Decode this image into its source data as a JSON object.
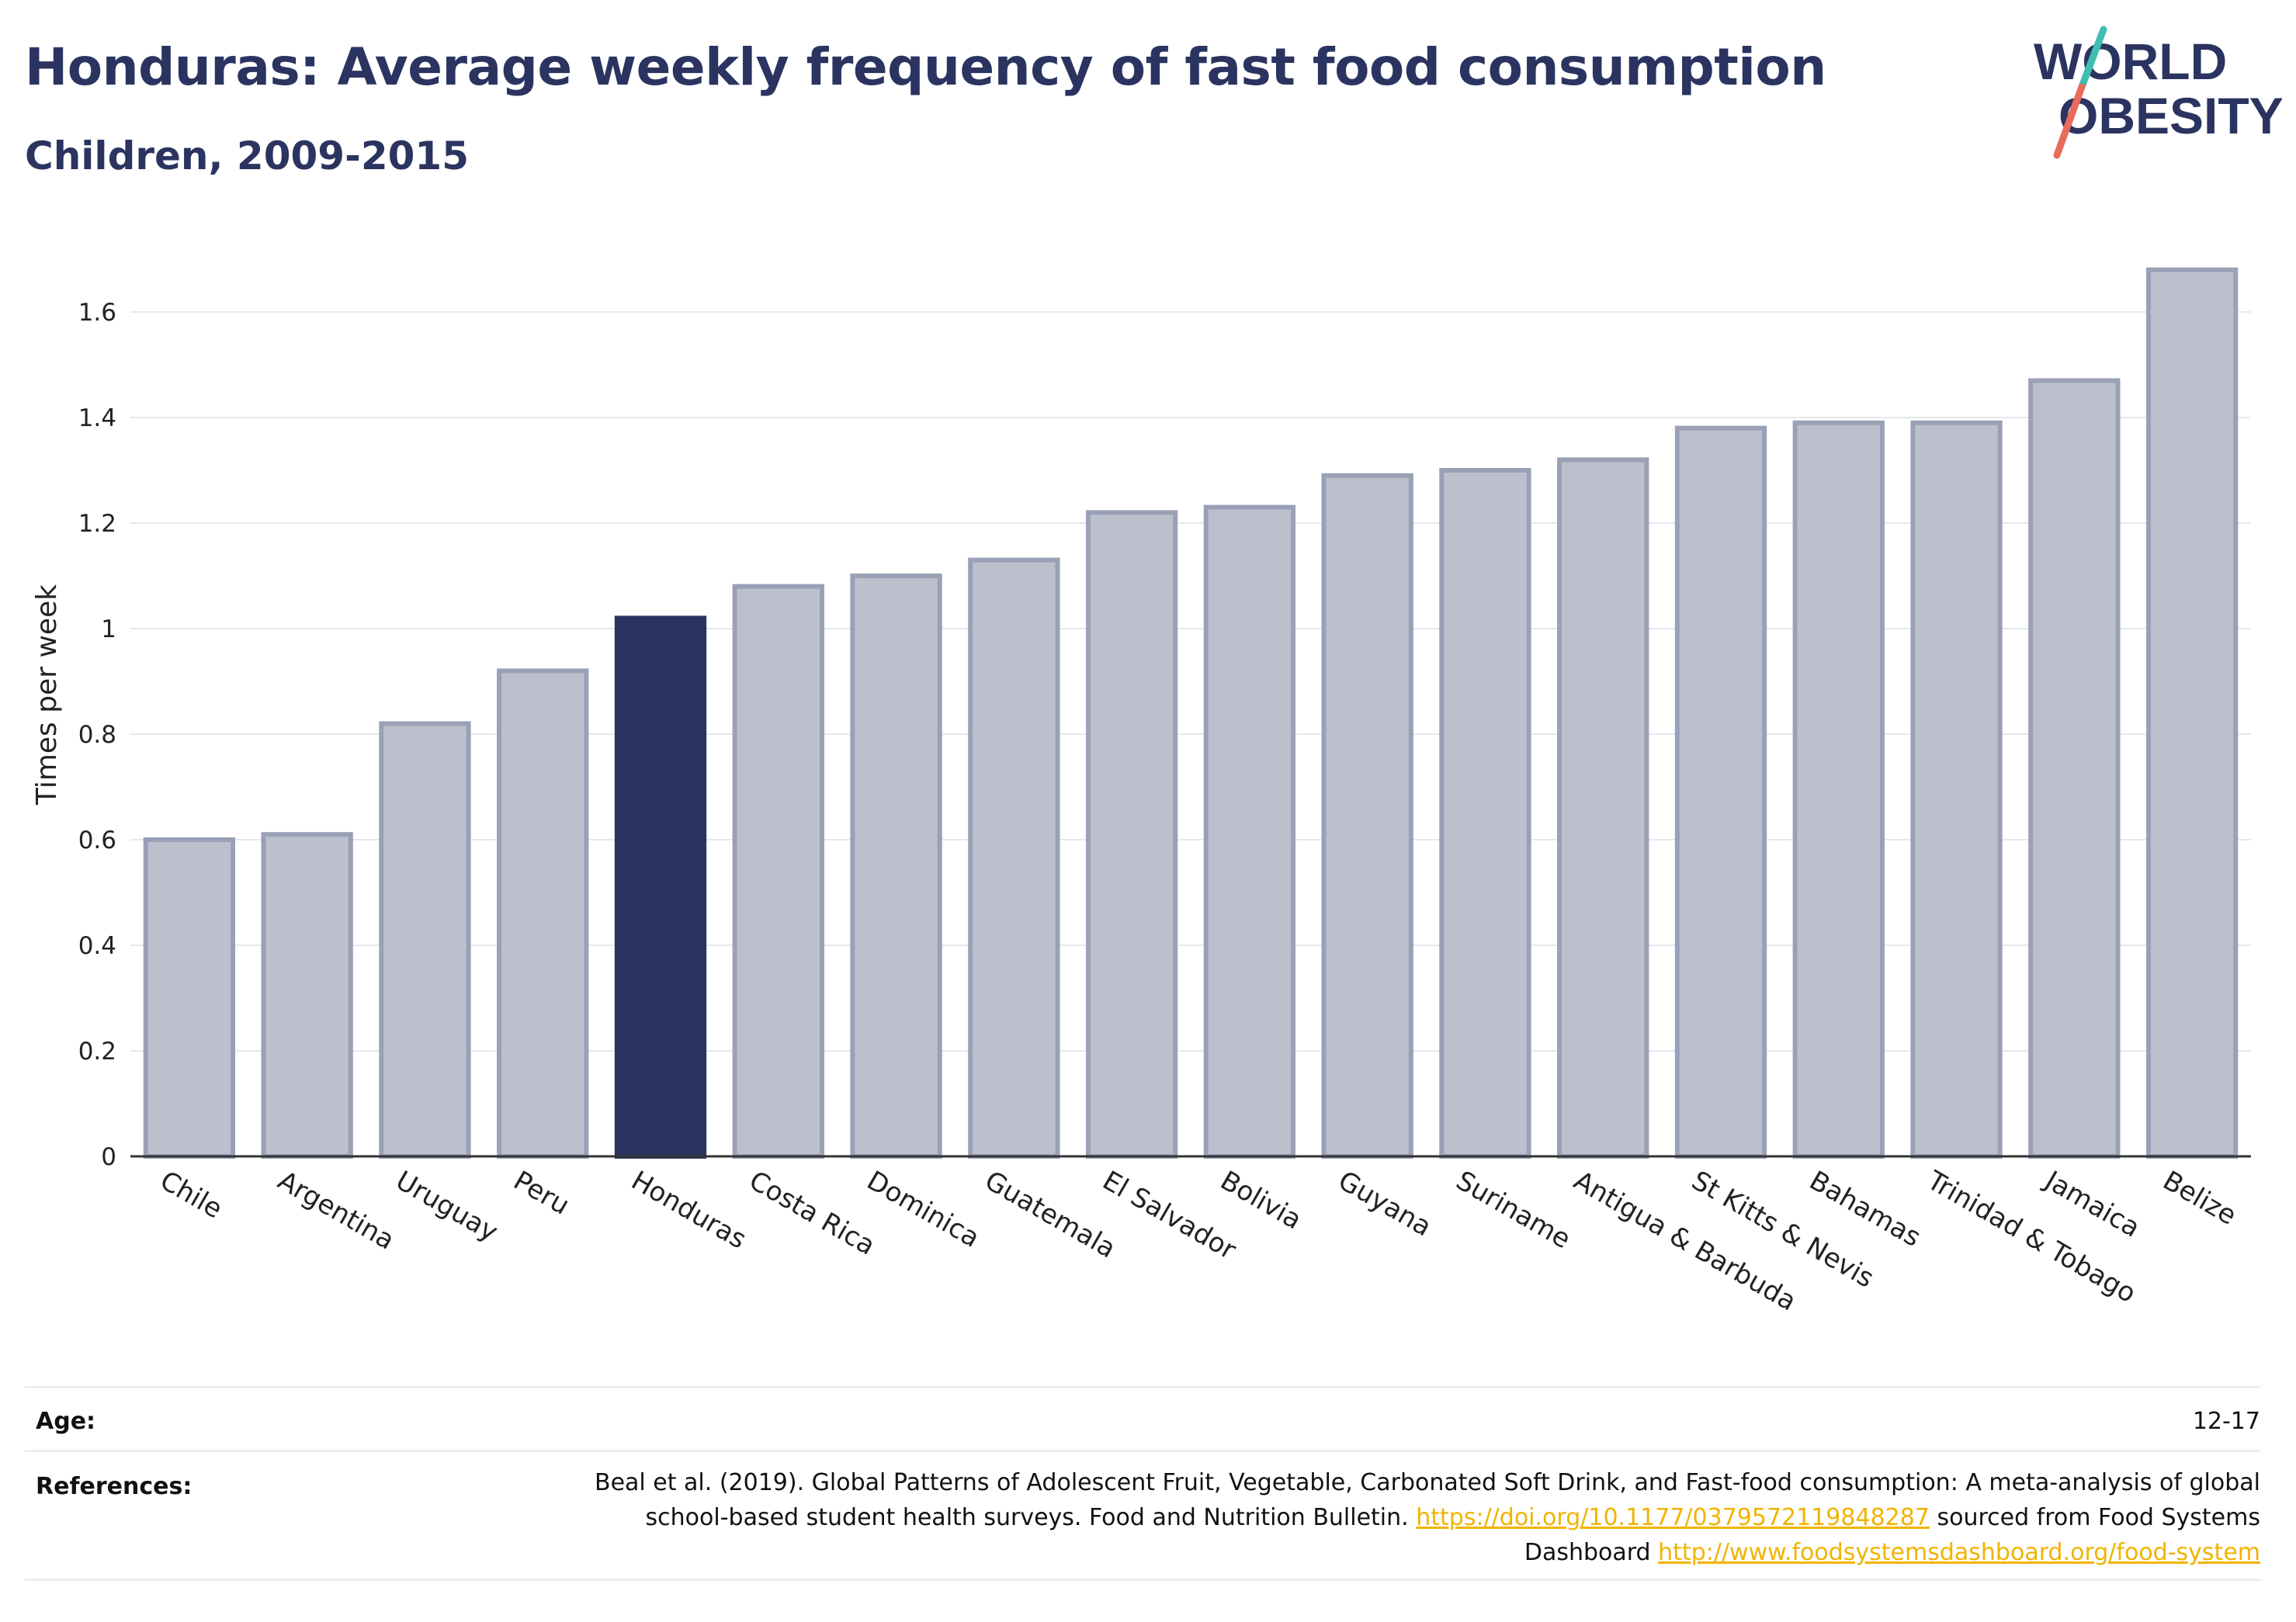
{
  "header": {
    "title": "Honduras: Average weekly frequency of fast food consumption",
    "subtitle": "Children, 2009-2015"
  },
  "logo": {
    "line1": "WORLD",
    "line2": "OBESITY",
    "text_color": "#2b3460",
    "slash_top_color": "#3fbfb2",
    "slash_bottom_color": "#e96b5b"
  },
  "chart_data": {
    "type": "bar",
    "categories": [
      "Chile",
      "Argentina",
      "Uruguay",
      "Peru",
      "Honduras",
      "Costa Rica",
      "Dominica",
      "Guatemala",
      "El Salvador",
      "Bolivia",
      "Guyana",
      "Suriname",
      "Antigua & Barbuda",
      "St Kitts & Nevis",
      "Bahamas",
      "Trinidad & Tobago",
      "Jamaica",
      "Belize"
    ],
    "values": [
      0.6,
      0.61,
      0.82,
      0.92,
      1.02,
      1.08,
      1.1,
      1.13,
      1.22,
      1.23,
      1.29,
      1.3,
      1.32,
      1.38,
      1.39,
      1.39,
      1.47,
      1.68
    ],
    "highlight": "Honduras",
    "ylabel": "Times per week",
    "ylim": [
      0,
      1.75
    ],
    "yticks": [
      0,
      0.2,
      0.4,
      0.6,
      0.8,
      1,
      1.2,
      1.4,
      1.6
    ],
    "ytick_labels": [
      "0",
      "0.2",
      "0.4",
      "0.6",
      "0.8",
      "1",
      "1.2",
      "1.4",
      "1.6"
    ],
    "grid": true,
    "colors": {
      "bar": "#bcc0cd",
      "bar_border": "#9aa0b6",
      "highlight": "#2b3460",
      "grid": "#e6e8ee",
      "axis": "#333333"
    }
  },
  "meta": {
    "age_label": "Age:",
    "age_value": "12-17",
    "references_label": "References:",
    "ref_text_1": "Beal et al. (2019). Global Patterns of Adolescent Fruit, Vegetable, Carbonated Soft Drink, and Fast-food consumption: A meta-analysis of global school-based student health surveys. Food and Nutrition Bulletin.",
    "ref_link_1": "https://doi.org/10.1177/0379572119848287",
    "ref_text_2": "sourced from Food Systems Dashboard",
    "ref_link_2": "http://www.foodsystemsdashboard.org/food-system"
  }
}
